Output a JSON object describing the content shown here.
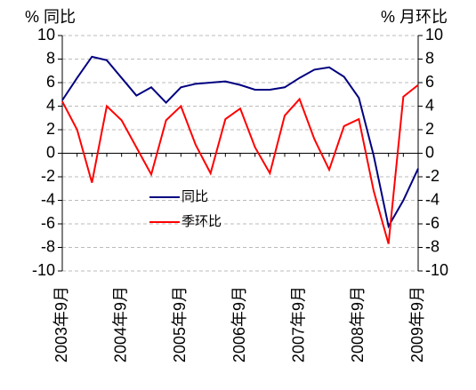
{
  "chart_data": {
    "type": "line",
    "ylabel": "% 同比",
    "y2label": "% 月环比",
    "categories": [
      "2003年9月",
      null,
      null,
      null,
      "2004年9月",
      null,
      null,
      null,
      "2005年9月",
      null,
      null,
      null,
      "2006年9月",
      null,
      null,
      null,
      "2007年9月",
      null,
      null,
      null,
      "2008年9月",
      null,
      null,
      null,
      "2009年9月"
    ],
    "series": [
      {
        "name": "同比",
        "color": "#000080",
        "values": [
          4.5,
          6.4,
          8.2,
          7.9,
          6.4,
          4.9,
          5.6,
          4.3,
          5.6,
          5.9,
          6.0,
          6.1,
          5.8,
          5.4,
          5.4,
          5.6,
          6.4,
          7.1,
          7.3,
          6.5,
          4.7,
          -0.2,
          -6.2,
          -4.0,
          -1.3
        ]
      },
      {
        "name": "季环比",
        "color": "#ff0000",
        "axis": "y2",
        "values": [
          4.4,
          2.0,
          -2.5,
          4.0,
          2.8,
          0.5,
          -1.8,
          2.8,
          4.0,
          0.7,
          -1.7,
          2.9,
          3.8,
          0.5,
          -1.7,
          3.2,
          4.6,
          1.2,
          -1.4,
          2.3,
          2.9,
          -3.2,
          -7.7,
          4.8,
          5.8
        ]
      }
    ],
    "ylim": [
      -10,
      10
    ],
    "yticks": [
      -10,
      -8,
      -6,
      -4,
      -2,
      0,
      2,
      4,
      6,
      8,
      10
    ],
    "y2lim": [
      -10,
      10
    ],
    "y2ticks": [
      -10,
      -8,
      -6,
      -4,
      -2,
      0,
      2,
      4,
      6,
      8,
      10
    ],
    "grid": true,
    "legend": "center"
  }
}
